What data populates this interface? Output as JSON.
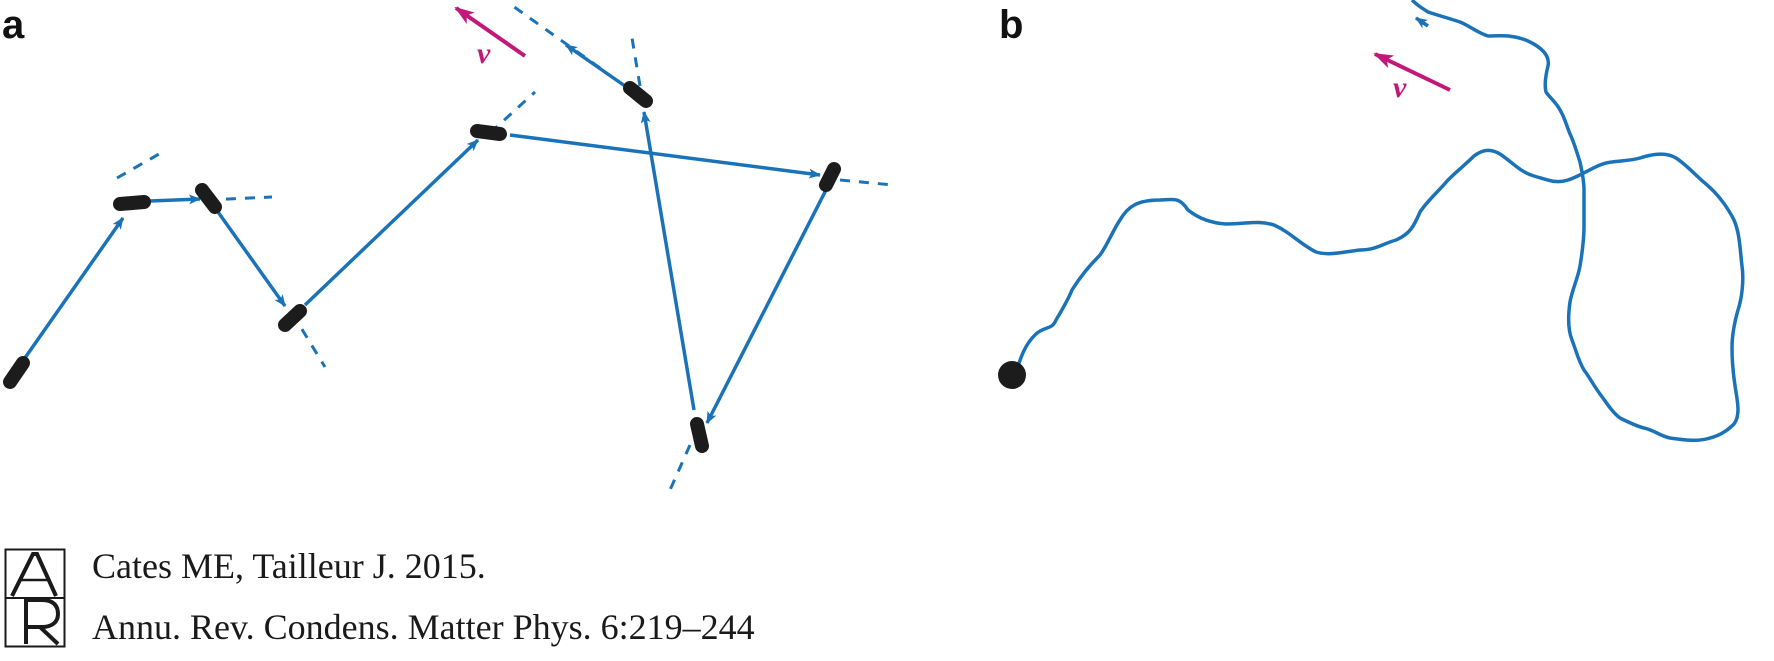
{
  "panels": {
    "a": {
      "label": "a",
      "velocity_label": "v"
    },
    "b": {
      "label": "b",
      "velocity_label": "v"
    }
  },
  "citation": {
    "line1": "Cates ME, Tailleur J. 2015.",
    "line2": "Annu. Rev. Condens. Matter Phys. 6:219–244",
    "logo": "AR"
  },
  "colors": {
    "trajectory": "#1a73b8",
    "particle": "#1c1c1c",
    "velocity": "#c2187a"
  },
  "icons": [
    "ar-logo-icon"
  ]
}
